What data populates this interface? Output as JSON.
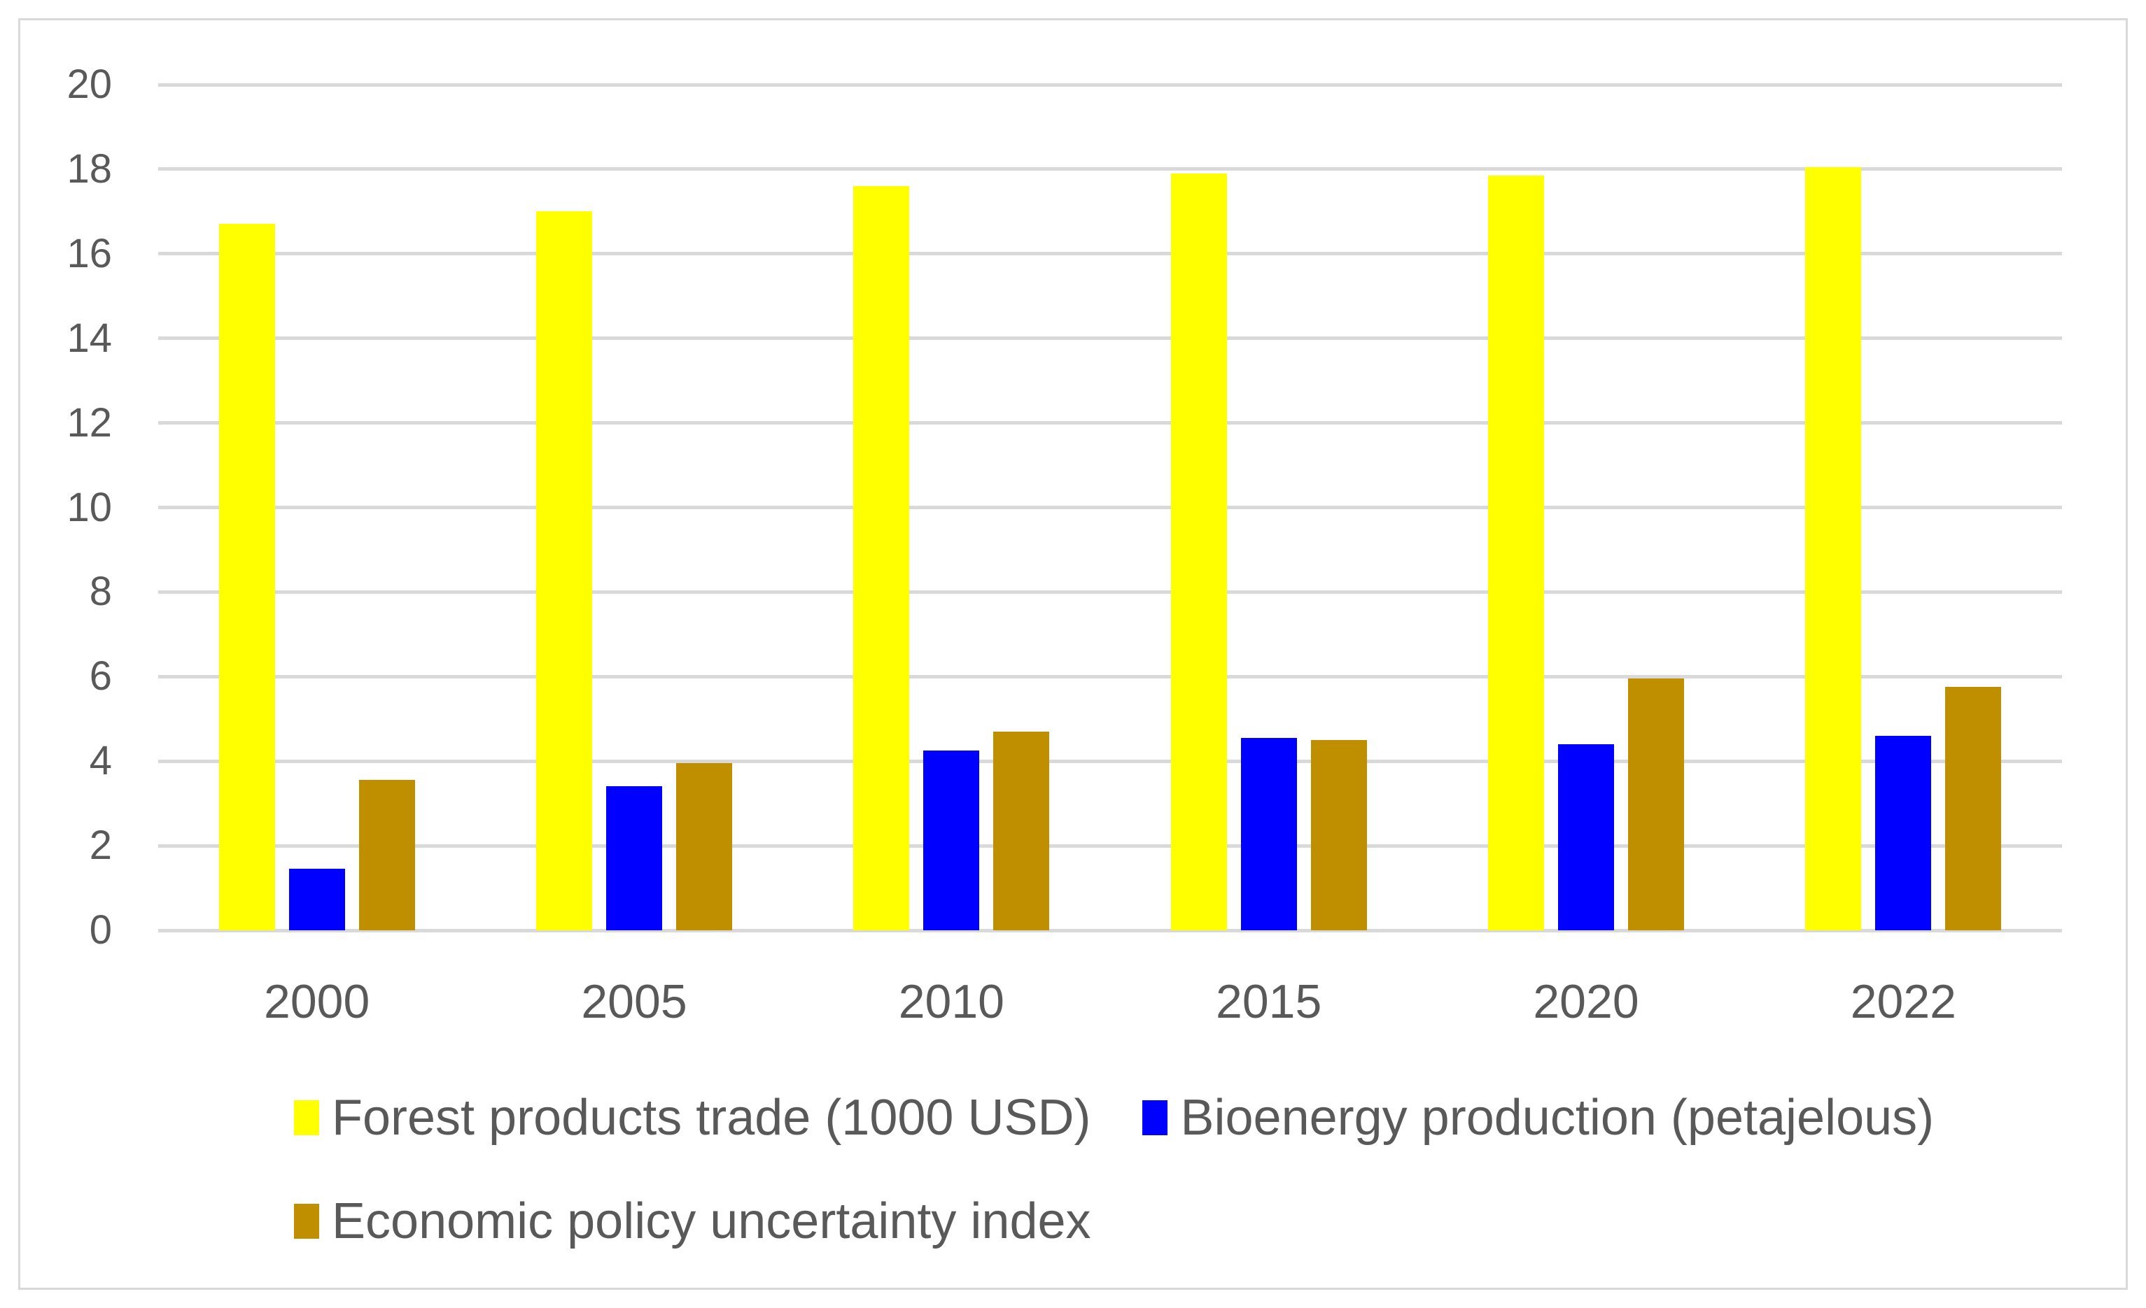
{
  "chart_data": {
    "type": "bar",
    "categories": [
      "2000",
      "2005",
      "2010",
      "2015",
      "2020",
      "2022"
    ],
    "series": [
      {
        "name": "Forest products trade (1000 USD)",
        "color": "#FFFF00",
        "values": [
          16.7,
          17.0,
          17.6,
          17.9,
          17.85,
          18.05
        ]
      },
      {
        "name": "Bioenergy production (petajelous)",
        "color": "#0000FF",
        "values": [
          1.45,
          3.4,
          4.25,
          4.55,
          4.4,
          4.6
        ]
      },
      {
        "name": "Economic policy uncertainty index",
        "color": "#BF8F00",
        "values": [
          3.55,
          3.95,
          4.7,
          4.5,
          5.95,
          5.75
        ]
      }
    ],
    "title": "",
    "xlabel": "",
    "ylabel": "",
    "ylim": [
      0,
      20
    ],
    "ytick_step": 2,
    "grid": true,
    "legend_position": "bottom-left",
    "legend_rows": [
      [
        0,
        1
      ],
      [
        2
      ]
    ]
  },
  "y_axis_ticks": [
    "0",
    "2",
    "4",
    "6",
    "8",
    "10",
    "12",
    "14",
    "16",
    "18",
    "20"
  ],
  "colors": {
    "grid": "#D9D9D9",
    "axis_line": "#D9D9D9",
    "axis_text": "#595959",
    "frame_border": "#D9D9D9",
    "background": "#FFFFFF"
  }
}
